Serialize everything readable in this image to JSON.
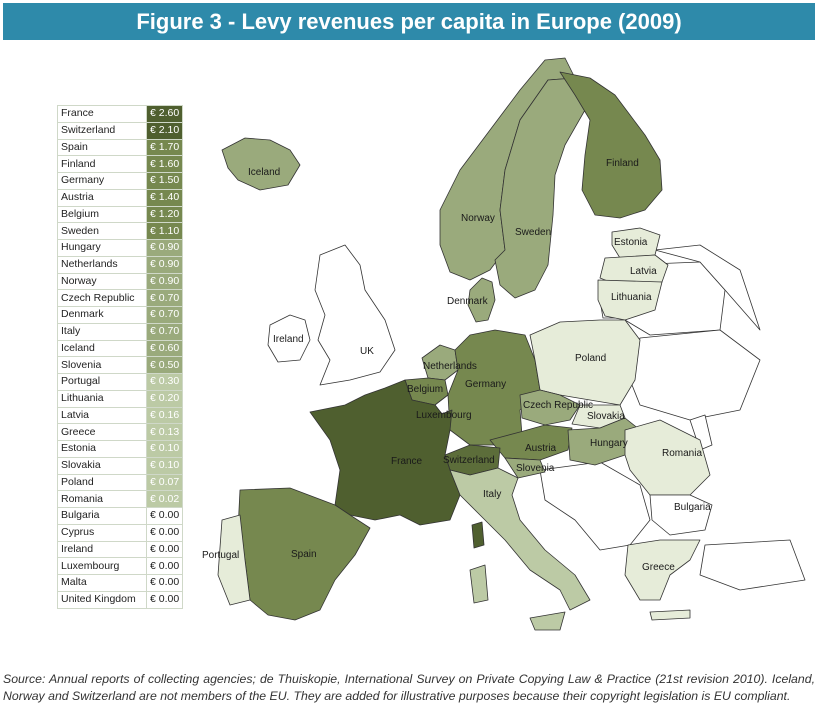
{
  "title": "Figure 3 - Levy revenues per capita in Europe (2009)",
  "colors": {
    "title_bg": "#2e8aaa",
    "highest": "#4f5f2f",
    "high": "#76884f",
    "mid": "#9aaa7c",
    "low": "#bccaa5",
    "lowest": "#e6ecd9",
    "none": "#ffffff"
  },
  "legend": [
    {
      "country": "France",
      "value": "€ 2.60"
    },
    {
      "country": "Switzerland",
      "value": "€ 2.10"
    },
    {
      "country": "Spain",
      "value": "€ 1.70"
    },
    {
      "country": "Finland",
      "value": "€ 1.60"
    },
    {
      "country": "Germany",
      "value": "€ 1.50"
    },
    {
      "country": "Austria",
      "value": "€ 1.40"
    },
    {
      "country": "Belgium",
      "value": "€ 1.20"
    },
    {
      "country": "Sweden",
      "value": "€ 1.10"
    },
    {
      "country": "Hungary",
      "value": "€ 0.90"
    },
    {
      "country": "Netherlands",
      "value": "€ 0.90"
    },
    {
      "country": "Norway",
      "value": "€ 0.90"
    },
    {
      "country": "Czech Republic",
      "value": "€ 0.70"
    },
    {
      "country": "Denmark",
      "value": "€ 0.70"
    },
    {
      "country": "Italy",
      "value": "€ 0.70"
    },
    {
      "country": "Iceland",
      "value": "€ 0.60"
    },
    {
      "country": "Slovenia",
      "value": "€ 0.50"
    },
    {
      "country": "Portugal",
      "value": "€ 0.30"
    },
    {
      "country": "Lithuania",
      "value": "€ 0.20"
    },
    {
      "country": "Latvia",
      "value": "€ 0.16"
    },
    {
      "country": "Greece",
      "value": "€ 0.13"
    },
    {
      "country": "Estonia",
      "value": "€ 0.10"
    },
    {
      "country": "Slovakia",
      "value": "€ 0.10"
    },
    {
      "country": "Poland",
      "value": "€ 0.07"
    },
    {
      "country": "Romania",
      "value": "€ 0.02"
    },
    {
      "country": "Bulgaria",
      "value": "€ 0.00"
    },
    {
      "country": "Cyprus",
      "value": "€ 0.00"
    },
    {
      "country": "Ireland",
      "value": "€ 0.00"
    },
    {
      "country": "Luxembourg",
      "value": "€ 0.00"
    },
    {
      "country": "Malta",
      "value": "€ 0.00"
    },
    {
      "country": "United Kingdom",
      "value": "€ 0.00"
    }
  ],
  "map_labels": {
    "iceland": "Iceland",
    "norway": "Norway",
    "sweden": "Sweden",
    "finland": "Finland",
    "estonia": "Estonia",
    "latvia": "Latvia",
    "lithuania": "Lithuania",
    "denmark": "Denmark",
    "ireland": "Ireland",
    "uk": "UK",
    "netherlands": "Netherlands",
    "belgium": "Belgium",
    "luxembourg": "Luxembourg",
    "germany": "Germany",
    "poland": "Poland",
    "czech": "Czech Republic",
    "slovakia": "Slovakia",
    "austria": "Austria",
    "hungary": "Hungary",
    "romania": "Romania",
    "france": "France",
    "switzerland": "Switzerland",
    "slovenia": "Slovenia",
    "italy": "Italy",
    "bulgaria": "Bulgaria",
    "spain": "Spain",
    "portugal": "Portugal",
    "greece": "Greece"
  },
  "source": "Source: Annual reports of collecting agencies; de Thuiskopie, International Survey on Private Copying Law & Practice (21st revision 2010). Iceland, Norway and Switzerland are not members of the EU. They are added for illustrative purposes because their copyright legislation is EU compliant."
}
